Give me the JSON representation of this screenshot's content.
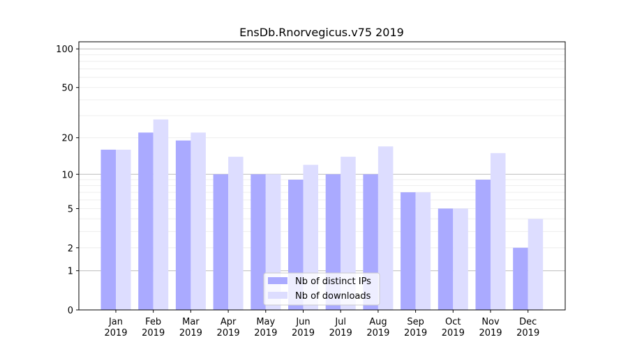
{
  "chart_data": {
    "type": "bar",
    "title": "EnsDb.Rnorvegicus.v75 2019",
    "xlabel": "",
    "ylabel": "",
    "yscale": "symlog (log10(1+y))",
    "ylim": [
      0,
      114
    ],
    "yticks": [
      0,
      1,
      2,
      5,
      10,
      20,
      50,
      100
    ],
    "grid": true,
    "legend_position": "bottom-center",
    "categories": [
      "Jan\n2019",
      "Feb\n2019",
      "Mar\n2019",
      "Apr\n2019",
      "May\n2019",
      "Jun\n2019",
      "Jul\n2019",
      "Aug\n2019",
      "Sep\n2019",
      "Oct\n2019",
      "Nov\n2019",
      "Dec\n2019"
    ],
    "series": [
      {
        "name": "Nb of distinct IPs",
        "color": "#aaaaff",
        "values": [
          16,
          22,
          19,
          10,
          10,
          9,
          10,
          10,
          7,
          5,
          9,
          2
        ]
      },
      {
        "name": "Nb of downloads",
        "color": "#ddddff",
        "values": [
          16,
          28,
          22,
          14,
          10,
          12,
          14,
          17,
          7,
          5,
          15,
          4
        ]
      }
    ]
  }
}
